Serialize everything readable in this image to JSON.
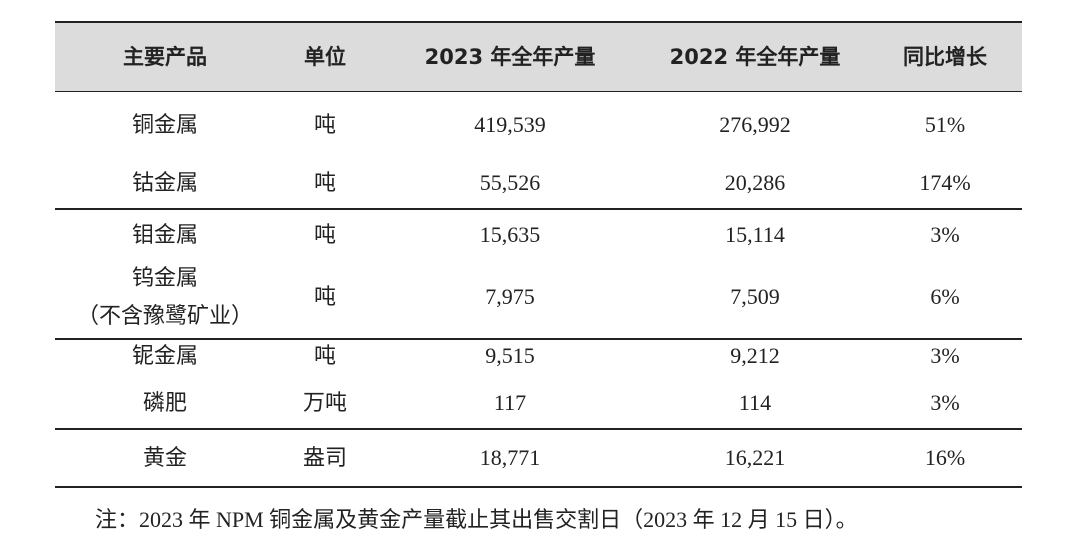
{
  "table": {
    "header": [
      "主要产品",
      "单位",
      "2023 年全年产量",
      "2022 年全年产量",
      "同比增长"
    ],
    "rows": [
      [
        [
          "铜金属"
        ],
        "吨",
        "419,539",
        "276,992",
        "51%"
      ],
      [
        [
          "钴金属"
        ],
        "吨",
        "55,526",
        "20,286",
        "174%"
      ],
      [
        [
          "钼金属"
        ],
        "吨",
        "15,635",
        "15,114",
        "3%"
      ],
      [
        [
          "钨金属",
          "（不含豫鹭矿业）"
        ],
        "吨",
        "7,975",
        "7,509",
        "6%"
      ],
      [
        [
          "铌金属"
        ],
        "吨",
        "9,515",
        "9,212",
        "3%"
      ],
      [
        [
          "磷肥"
        ],
        "万吨",
        "117",
        "114",
        "3%"
      ],
      [
        [
          "黄金"
        ],
        "盎司",
        "18,771",
        "16,221",
        "16%"
      ]
    ]
  },
  "note": "注：2023 年 NPM 铜金属及黄金产量截止其出售交割日（2023 年 12 月 15 日）。"
}
